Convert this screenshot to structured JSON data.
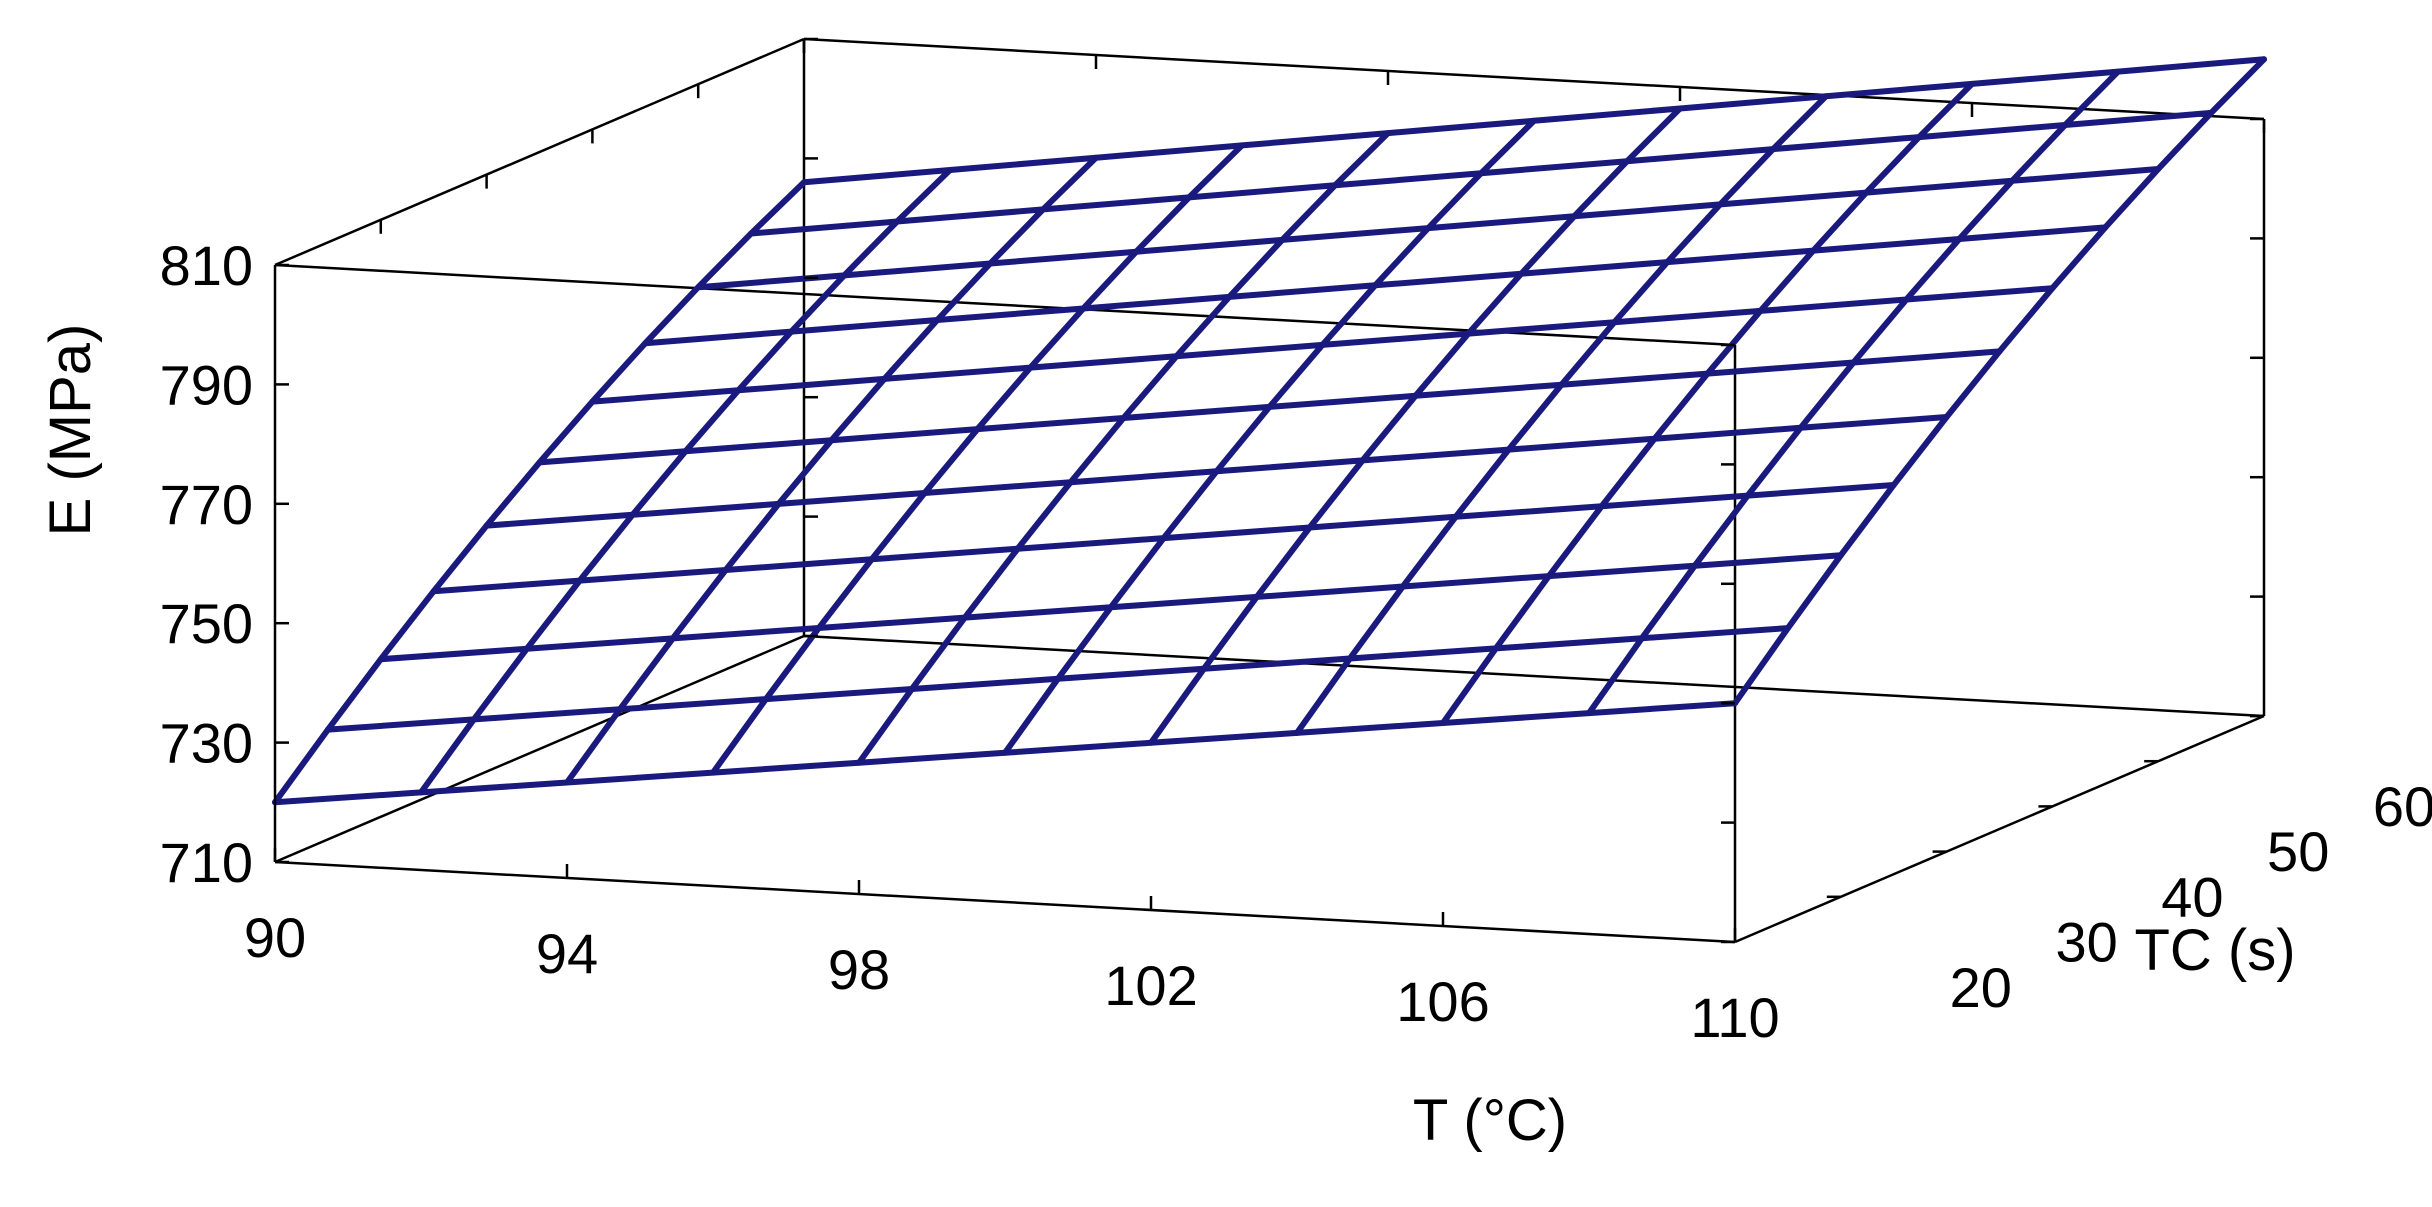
{
  "chart_data": {
    "type": "surface3d",
    "xlabel": "T (°C)",
    "ylabel": "TC (s)",
    "zlabel": "E (MPa)",
    "xlim": [
      90,
      110
    ],
    "ylim": [
      10,
      60
    ],
    "zlim": [
      710,
      810
    ],
    "x_ticks": [
      "90",
      "94",
      "98",
      "102",
      "106",
      "110"
    ],
    "y_ticks": [
      "20",
      "30",
      "40",
      "50",
      "60"
    ],
    "z_ticks": [
      "710",
      "730",
      "750",
      "770",
      "790",
      "810"
    ],
    "x": [
      90,
      92,
      94,
      96,
      98,
      100,
      102,
      104,
      106,
      108,
      110
    ],
    "y": [
      10,
      15,
      20,
      25,
      30,
      35,
      40,
      45,
      50,
      55,
      60
    ],
    "surface_color": "#1a1a7e",
    "grid": false
  }
}
